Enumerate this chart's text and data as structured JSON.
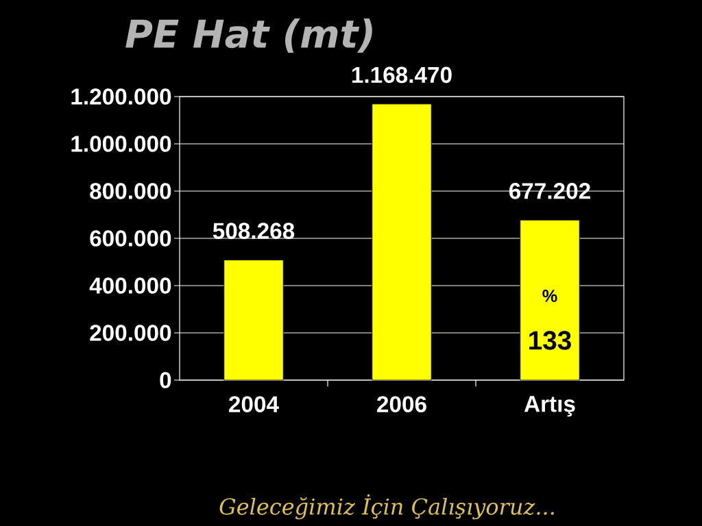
{
  "chart_data": {
    "type": "bar",
    "title": "PE Hat (mt)",
    "categories": [
      "2004",
      "2006",
      "Artış"
    ],
    "values": [
      508268,
      1168470,
      677202
    ],
    "color": "#ffff00",
    "value_labels": [
      "508.268",
      "1.168.470",
      "677.202"
    ],
    "ylim": [
      0,
      1200000
    ],
    "yticks": [
      0,
      {
        "value": 200000,
        "label": "200.000"
      },
      {
        "value": 400000,
        "label": "400.000"
      },
      {
        "value": 600000,
        "label": "600.000"
      },
      {
        "value": 800000,
        "label": "800.000"
      },
      {
        "value": 1000000,
        "label": "1.000.000"
      },
      {
        "value": 1200000,
        "label": "1.200.000"
      }
    ],
    "grid": "y",
    "annotations": [
      "%",
      "133",
      "Geleceğimiz İçin Çalışıyoruz..."
    ]
  }
}
